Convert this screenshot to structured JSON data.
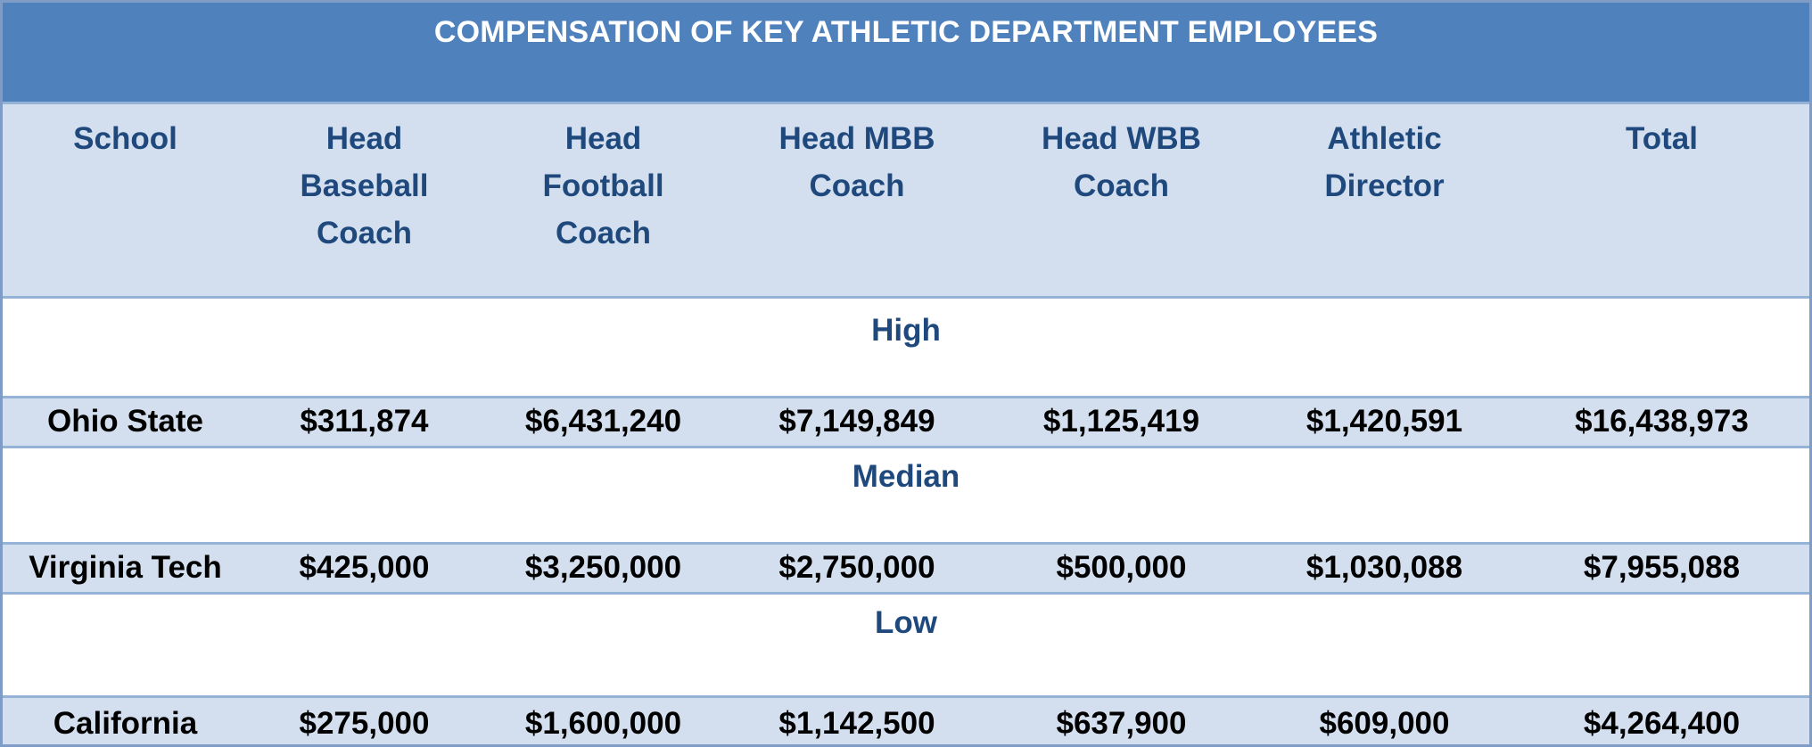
{
  "title": "COMPENSATION OF KEY ATHLETIC DEPARTMENT EMPLOYEES",
  "columns": [
    "School",
    "Head\nBaseball\nCoach",
    "Head\nFootball\nCoach",
    "Head MBB\nCoach",
    "Head WBB\nCoach",
    "Athletic\nDirector",
    "Total"
  ],
  "sections": [
    {
      "label": "High",
      "row": [
        "Ohio State",
        "$311,874",
        "$6,431,240",
        "$7,149,849",
        "$1,125,419",
        "$1,420,591",
        "$16,438,973"
      ]
    },
    {
      "label": "Median",
      "row": [
        "Virginia Tech",
        "$425,000",
        "$3,250,000",
        "$2,750,000",
        "$500,000",
        "$1,030,088",
        "$7,955,088"
      ]
    },
    {
      "label": "Low",
      "row": [
        "California",
        "$275,000",
        "$1,600,000",
        "$1,142,500",
        "$637,900",
        "$609,000",
        "$4,264,400"
      ]
    }
  ],
  "colors": {
    "title_bg": "#4f81bd",
    "title_text": "#ffffff",
    "header_bg": "#d3dfee",
    "header_text": "#1f497d",
    "data_row_bg": "#d3dfee",
    "data_text": "#000000",
    "section_label_text": "#1f497d",
    "border": "#95b3d7"
  }
}
